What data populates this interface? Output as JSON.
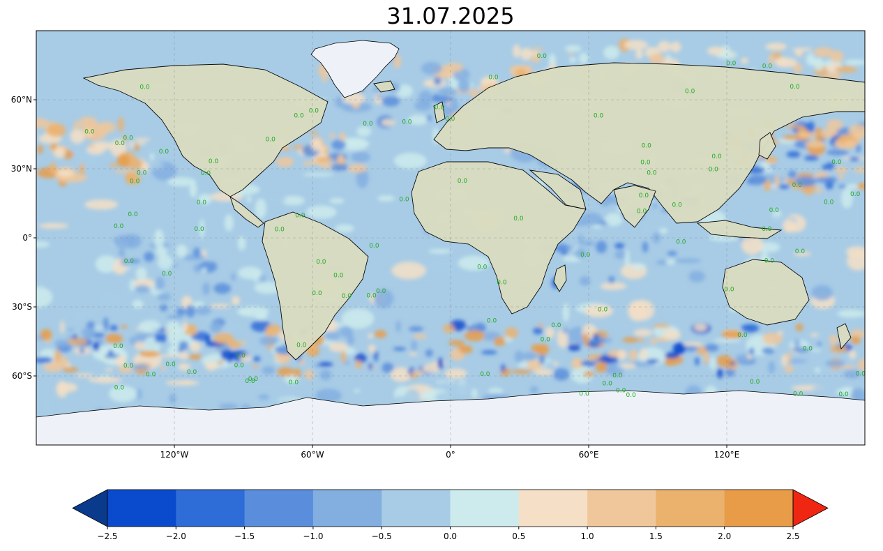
{
  "title": "31.07.2025",
  "map": {
    "projection": "PlateCarree",
    "lon_range": [
      -180,
      180
    ],
    "lat_range": [
      -90,
      90
    ],
    "lat_ticks": [
      "60°N",
      "30°N",
      "0°",
      "30°S",
      "60°S"
    ],
    "lat_tick_values": [
      60,
      30,
      0,
      -30,
      -60
    ],
    "lon_ticks": [
      "120°W",
      "60°W",
      "0°",
      "60°E",
      "120°E"
    ],
    "lon_tick_values": [
      -120,
      -60,
      0,
      60,
      120
    ],
    "gridlines": true,
    "contour_label": "0.0"
  },
  "colorbar": {
    "levels": [
      -2.5,
      -2.0,
      -1.5,
      -1.0,
      -0.5,
      0.0,
      0.5,
      1.0,
      1.5,
      2.0,
      2.5
    ],
    "tick_labels": [
      "−2.5",
      "−2.0",
      "−1.5",
      "−1.0",
      "−0.5",
      "0.0",
      "0.5",
      "1.0",
      "1.5",
      "2.0",
      "2.5"
    ],
    "colors": [
      "#0a3a8c",
      "#0a4acc",
      "#2e6cd8",
      "#5a8edc",
      "#82aee0",
      "#a8cce6",
      "#cdebec",
      "#f5dfc6",
      "#f0c79a",
      "#ebb26e",
      "#e89c48",
      "#ee2612"
    ],
    "extend": "both"
  },
  "colors": {
    "land": "#d9dcc0",
    "ocean_base": "#a8cce6",
    "ice": "#eef2f8",
    "coast": "#000000"
  }
}
